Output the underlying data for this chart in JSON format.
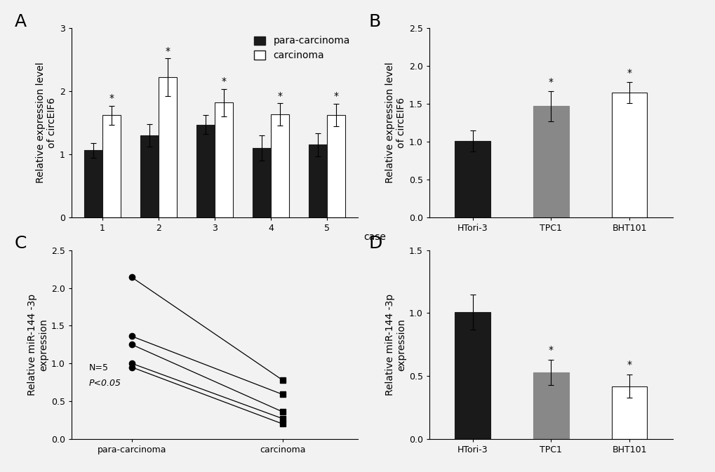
{
  "panel_A": {
    "cases": [
      1,
      2,
      3,
      4,
      5
    ],
    "para_values": [
      1.06,
      1.3,
      1.47,
      1.1,
      1.15
    ],
    "para_errors": [
      0.12,
      0.18,
      0.15,
      0.2,
      0.18
    ],
    "carc_values": [
      1.62,
      2.22,
      1.82,
      1.63,
      1.62
    ],
    "carc_errors": [
      0.15,
      0.3,
      0.22,
      0.18,
      0.18
    ],
    "ylabel": "Relative expression level\nof circEIF6",
    "ylim": [
      0,
      3.0
    ],
    "yticks": [
      0,
      1,
      2,
      3
    ],
    "legend_labels": [
      "para-carcinoma",
      "carcinoma"
    ]
  },
  "panel_B": {
    "categories": [
      "HTori-3",
      "TPC1",
      "BHT101"
    ],
    "values": [
      1.01,
      1.47,
      1.65
    ],
    "errors": [
      0.14,
      0.2,
      0.14
    ],
    "colors": [
      "#1a1a1a",
      "#888888",
      "#ffffff"
    ],
    "edge_colors": [
      "#1a1a1a",
      "#888888",
      "#1a1a1a"
    ],
    "ylabel": "Relative expression level\nof circEIF6",
    "ylim": [
      0,
      2.5
    ],
    "yticks": [
      0.0,
      0.5,
      1.0,
      1.5,
      2.0,
      2.5
    ],
    "has_star": [
      false,
      true,
      true
    ]
  },
  "panel_C": {
    "para_values": [
      2.14,
      1.36,
      1.25,
      1.0,
      0.95
    ],
    "carc_values": [
      0.78,
      0.59,
      0.36,
      0.27,
      0.2
    ],
    "ylabel": "Relative miR-144 -3p\nexpression",
    "ylim": [
      0,
      2.5
    ],
    "yticks": [
      0.0,
      0.5,
      1.0,
      1.5,
      2.0,
      2.5
    ],
    "annotation_line1": "N=5",
    "annotation_line2": "P<0.05",
    "xlabels": [
      "para-carcinoma",
      "carcinoma"
    ]
  },
  "panel_D": {
    "categories": [
      "HTori-3",
      "TPC1",
      "BHT101"
    ],
    "values": [
      1.01,
      0.53,
      0.42
    ],
    "errors": [
      0.14,
      0.1,
      0.09
    ],
    "colors": [
      "#1a1a1a",
      "#888888",
      "#ffffff"
    ],
    "edge_colors": [
      "#1a1a1a",
      "#888888",
      "#1a1a1a"
    ],
    "ylabel": "Relative miR-144 -3p\nexpression",
    "ylim": [
      0,
      1.5
    ],
    "yticks": [
      0.0,
      0.5,
      1.0,
      1.5
    ],
    "has_star": [
      false,
      true,
      true
    ]
  },
  "bg_color": "#f2f2f2",
  "bar_color_para": "#1a1a1a",
  "bar_color_carc": "#ffffff",
  "bar_edge": "#1a1a1a",
  "panel_label_fontsize": 18,
  "axis_fontsize": 10,
  "tick_fontsize": 9,
  "legend_fontsize": 10
}
